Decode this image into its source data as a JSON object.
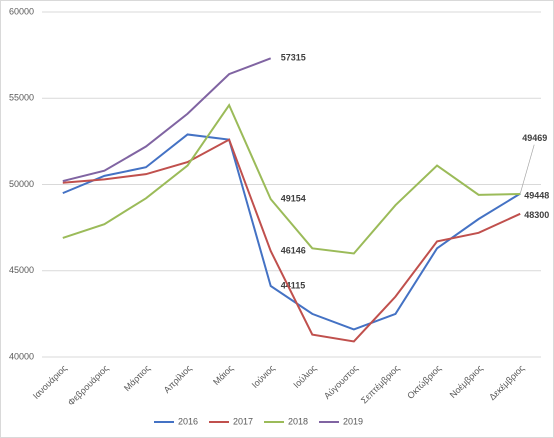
{
  "chart_data": {
    "type": "line",
    "categories": [
      "Ιανουάριος",
      "Φεβρουάριος",
      "Μάρτιος",
      "Απρίλιος",
      "Μάιος",
      "Ιούνιος",
      "Ιούλιος",
      "Αύγουστος",
      "Σεπτέμβριος",
      "Οκτώβριος",
      "Νοέμβριος",
      "Δεκέμβριος"
    ],
    "series": [
      {
        "name": "2016",
        "color": "#4472c4",
        "values": [
          49500,
          50500,
          51000,
          52900,
          52600,
          44115,
          42500,
          41600,
          42500,
          46300,
          48000,
          49469
        ],
        "value_labels": [
          null,
          null,
          null,
          null,
          null,
          "44115",
          null,
          null,
          null,
          null,
          null,
          "49469"
        ]
      },
      {
        "name": "2017",
        "color": "#c0504d",
        "values": [
          50100,
          50300,
          50600,
          51300,
          52600,
          46146,
          41300,
          40900,
          43500,
          46700,
          47200,
          48300
        ],
        "value_labels": [
          null,
          null,
          null,
          null,
          null,
          "46146",
          null,
          null,
          null,
          null,
          null,
          "48300"
        ]
      },
      {
        "name": "2018",
        "color": "#9bbb59",
        "values": [
          46900,
          47700,
          49200,
          51100,
          54600,
          49154,
          46300,
          46000,
          48800,
          51100,
          49400,
          49448
        ],
        "value_labels": [
          null,
          null,
          null,
          null,
          null,
          "49154",
          null,
          null,
          null,
          null,
          null,
          "49448"
        ]
      },
      {
        "name": "2019",
        "color": "#8064a2",
        "values": [
          50200,
          50800,
          52200,
          54100,
          56400,
          57315,
          null,
          null,
          null,
          null,
          null,
          null
        ],
        "value_labels": [
          null,
          null,
          null,
          null,
          null,
          "57315",
          null,
          null,
          null,
          null,
          null,
          null
        ]
      }
    ],
    "ylim": [
      40000,
      60000
    ],
    "yticks": [
      40000,
      45000,
      50000,
      55000,
      60000
    ],
    "grid": true,
    "legend": "bottom"
  }
}
